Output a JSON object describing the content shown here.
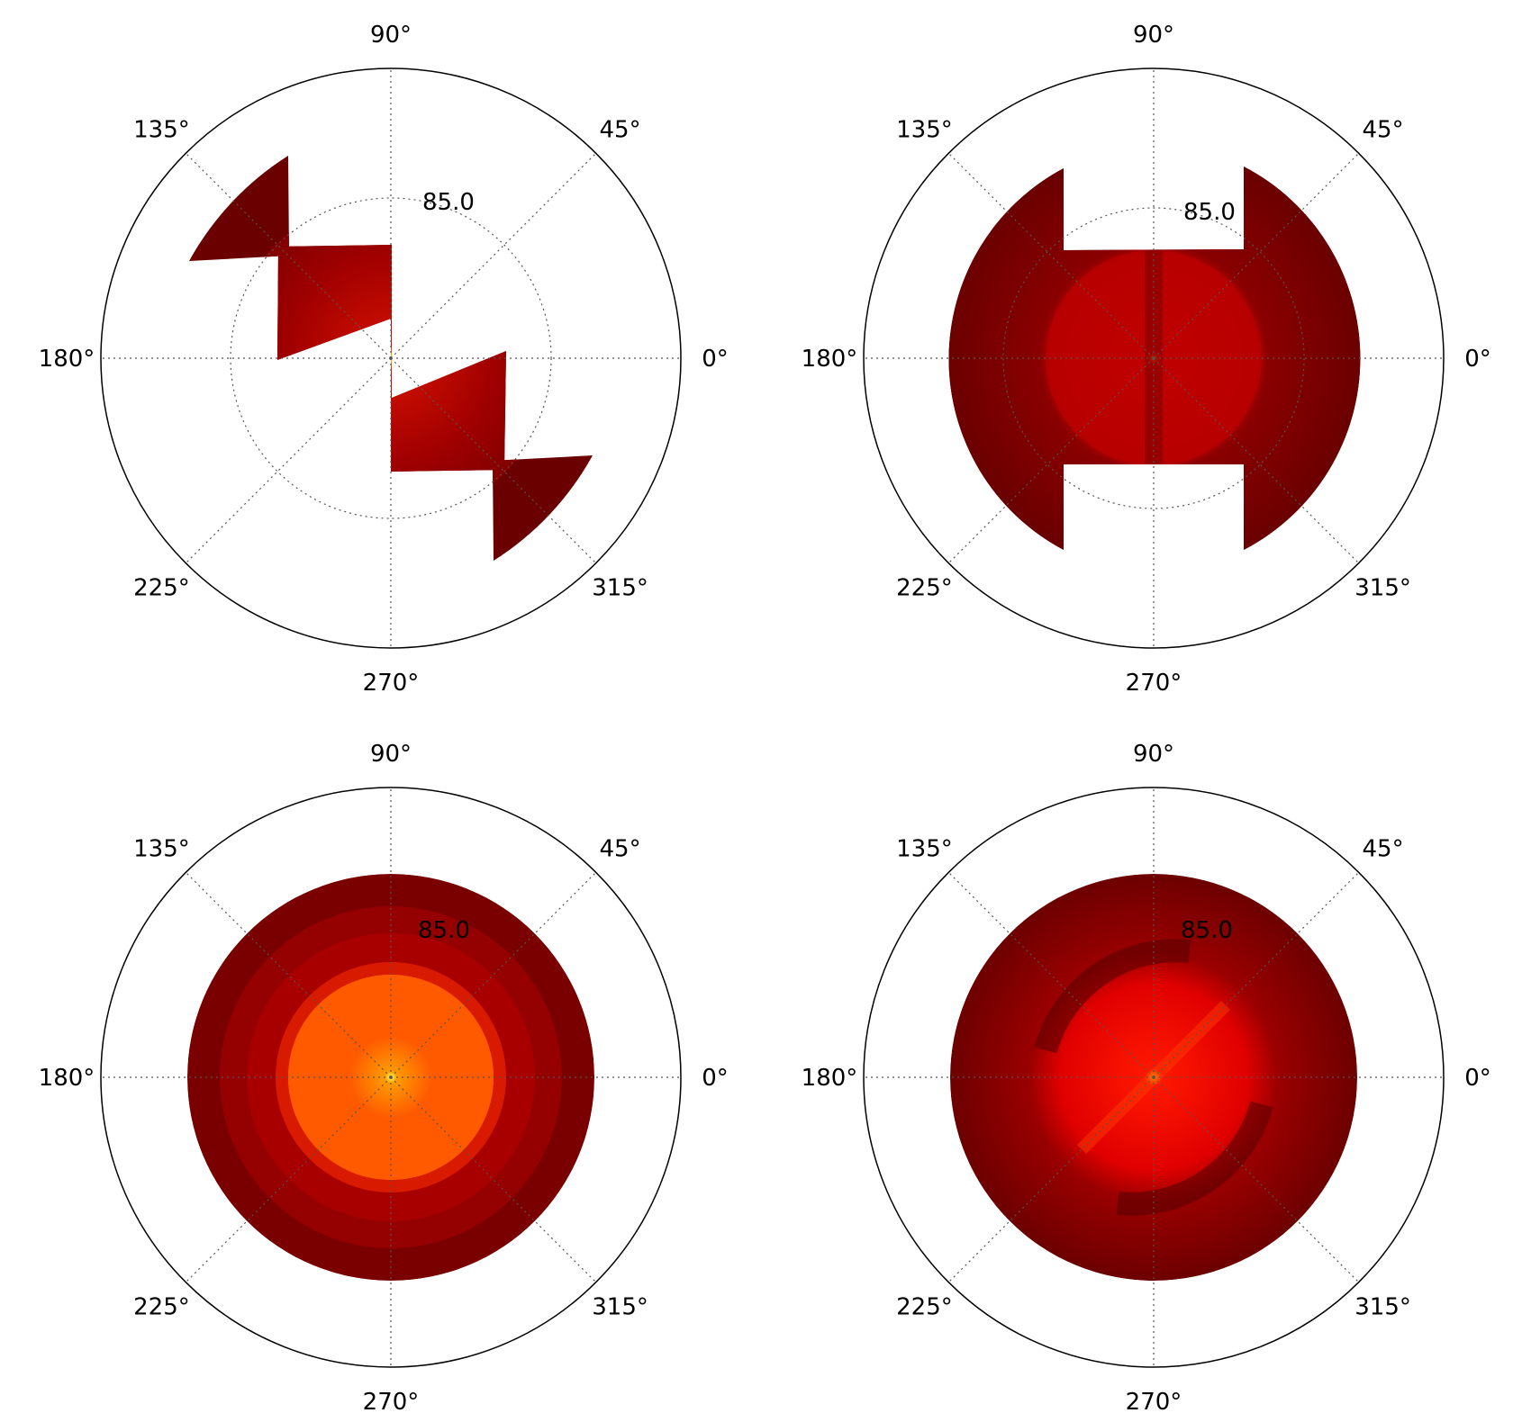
{
  "chart_data": [
    {
      "type": "heatmap",
      "projection": "polar",
      "panel": "top-left",
      "theta_ticks": [
        "0°",
        "45°",
        "90°",
        "135°",
        "180°",
        "225°",
        "270°",
        "315°"
      ],
      "r_tick": "85.0",
      "grid": true,
      "colormap": "hot",
      "shape": "two diagonal square blocks with wedge tabs (135° / 315° diagonal)",
      "colors": {
        "edge": "#6b0000",
        "center": "#d01000",
        "hot_center": "#ffe000"
      }
    },
    {
      "type": "heatmap",
      "projection": "polar",
      "panel": "top-right",
      "theta_ticks": [
        "0°",
        "45°",
        "90°",
        "135°",
        "180°",
        "225°",
        "270°",
        "315°"
      ],
      "r_tick": "85.0",
      "grid": true,
      "colormap": "hot",
      "shape": "disk with notched top and bottom",
      "colors": {
        "edge": "#6b0000",
        "center": "#c00000",
        "hot_center": "#ff8000"
      }
    },
    {
      "type": "heatmap",
      "projection": "polar",
      "panel": "bottom-left",
      "theta_ticks": [
        "0°",
        "45°",
        "90°",
        "135°",
        "180°",
        "225°",
        "270°",
        "315°"
      ],
      "r_tick": "85.0",
      "grid": true,
      "colormap": "hot",
      "shape": "full disk with concentric rings",
      "colors": {
        "edge": "#7a0000",
        "ring1": "#a80000",
        "ring2": "#d81a00",
        "center": "#ff5a00",
        "hot_center": "#ffff60"
      }
    },
    {
      "type": "heatmap",
      "projection": "polar",
      "panel": "bottom-right",
      "theta_ticks": [
        "0°",
        "45°",
        "90°",
        "135°",
        "180°",
        "225°",
        "270°",
        "315°"
      ],
      "r_tick": "85.0",
      "grid": true,
      "colormap": "hot",
      "shape": "full disk with diagonal dark bands",
      "colors": {
        "edge": "#6b0000",
        "center": "#ff1800",
        "hot_center": "#ffc000"
      }
    }
  ]
}
